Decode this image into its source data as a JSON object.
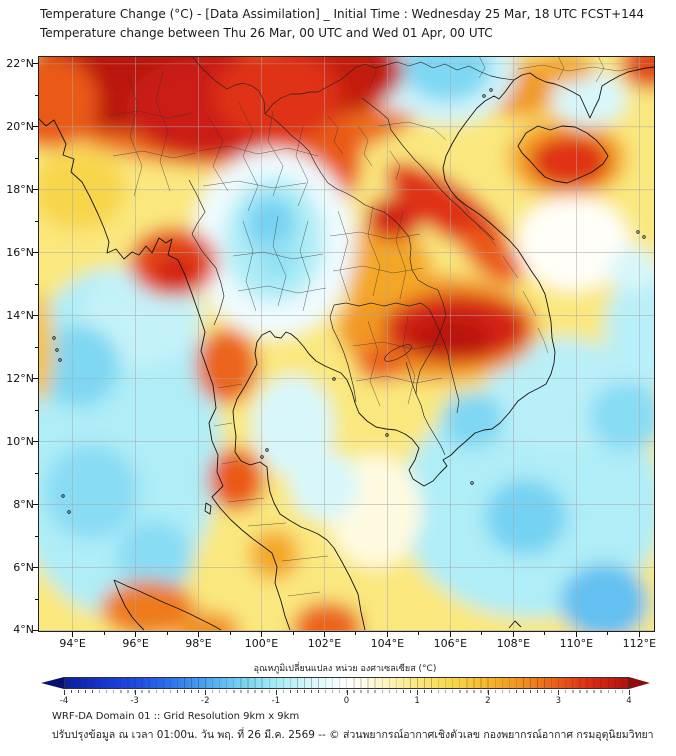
{
  "header": {
    "title_line1": "Temperature Change (°C) - [Data Assimilation] _ Initial Time : Wednesday 25 Mar, 18 UTC FCST+144",
    "title_line2": "Temperature change between Thu 26 Mar, 00 UTC and Wed 01 Apr, 00 UTC"
  },
  "map": {
    "extent": {
      "lon_min": 92.9,
      "lon_max": 112.5,
      "lat_min": 3.95,
      "lat_max": 22.25
    },
    "x_axis": {
      "tick_values": [
        94,
        96,
        98,
        100,
        102,
        104,
        106,
        108,
        110,
        112
      ],
      "tick_labels": [
        "94°E",
        "96°E",
        "98°E",
        "100°E",
        "102°E",
        "104°E",
        "106°E",
        "108°E",
        "110°E",
        "112°E"
      ]
    },
    "y_axis": {
      "tick_values": [
        22,
        20,
        18,
        16,
        14,
        12,
        10,
        8,
        6,
        4
      ],
      "tick_labels": [
        "22°N",
        "20°N",
        "18°N",
        "16°N",
        "14°N",
        "12°N",
        "10°N",
        "8°N",
        "6°N",
        "4°N"
      ]
    }
  },
  "colorbar": {
    "title": "อุณหภูมิเปลี่ยนแปลง หน่วย องศาเซลเซียส (°C)",
    "tick_labels": [
      "-4",
      "-3",
      "-2",
      "-1",
      "0",
      "1",
      "2",
      "3",
      "4"
    ],
    "tick_values": [
      -4,
      -3,
      -2,
      -1,
      0,
      1,
      2,
      3,
      4
    ],
    "under_color": "#071070",
    "over_color": "#8E0A0C",
    "stops": [
      [
        -4,
        "#0B1FA0"
      ],
      [
        -3.5,
        "#1534CC"
      ],
      [
        -3,
        "#1D4BE4"
      ],
      [
        -2.5,
        "#2E72EC"
      ],
      [
        -2,
        "#4AA5F0"
      ],
      [
        -1.5,
        "#74D2F2"
      ],
      [
        -1,
        "#A5EAF6"
      ],
      [
        -0.5,
        "#D8F7FB"
      ],
      [
        -0.15,
        "#F3FCFE"
      ],
      [
        0,
        "#FFFFFF"
      ],
      [
        0.15,
        "#FFFEF4"
      ],
      [
        0.5,
        "#FDF5C6"
      ],
      [
        1,
        "#FAE87E"
      ],
      [
        1.5,
        "#F8D64B"
      ],
      [
        2,
        "#F6B72E"
      ],
      [
        2.5,
        "#F1901F"
      ],
      [
        3,
        "#EA5A19"
      ],
      [
        3.5,
        "#DC2814"
      ],
      [
        4,
        "#B2120F"
      ]
    ]
  },
  "footer": {
    "line1": "WRF-DA Domain 01 :: Grid Resolution 9km x 9km",
    "line2": "ปรับปรุงข้อมูล ณ เวลา 01:00น. วัน พฤ. ที่ 26 มี.ค. 2569 -- © ส่วนพยากรณ์อากาศเชิงตัวเลข กองพยากรณ์อากาศ กรมอุตุนิยมวิทยา"
  },
  "chart_data": {
    "type": "heatmap",
    "subtype": "filled-contour temperature-change map",
    "title": "Temperature Change (°C) - [Data Assimilation]",
    "region": "Thailand / Indochina (WRF-DA Domain 01)",
    "xlabel": "Longitude (°E)",
    "ylabel": "Latitude (°N)",
    "xlim": [
      92.9,
      112.5
    ],
    "ylim": [
      3.95,
      22.25
    ],
    "grid": true,
    "value_units": "°C",
    "value_range": [
      -4,
      4
    ],
    "base_value": 1.0,
    "anomaly_centers": [
      {
        "name": "andaman-sea-cool",
        "lon": 95.3,
        "lat": 10.0,
        "rx": 3.4,
        "ry": 5.5,
        "dT": -0.9
      },
      {
        "name": "andaman-north-cool",
        "lon": 96.2,
        "lat": 14.0,
        "rx": 1.9,
        "ry": 1.6,
        "dT": -0.7
      },
      {
        "name": "south-china-sea-cool",
        "lon": 108.6,
        "lat": 8.0,
        "rx": 4.2,
        "ry": 3.6,
        "dT": -0.9
      },
      {
        "name": "scs-north-cool",
        "lon": 109.5,
        "lat": 11.5,
        "rx": 2.4,
        "ry": 1.8,
        "dT": -0.8
      },
      {
        "name": "scs-east-cool",
        "lon": 112.2,
        "lat": 13.5,
        "rx": 1.3,
        "ry": 2.0,
        "dT": -0.8
      },
      {
        "name": "north-warm-band",
        "lon": 99.0,
        "lat": 21.3,
        "rx": 6.5,
        "ry": 2.6,
        "dT": 2.8
      },
      {
        "name": "laos-north-warm",
        "lon": 101.7,
        "lat": 19.0,
        "rx": 1.5,
        "ry": 1.8,
        "dT": 3.0
      },
      {
        "name": "myanmar-coast-mild",
        "lon": 94.2,
        "lat": 18.0,
        "rx": 1.5,
        "ry": 1.3,
        "dT": 1.5
      },
      {
        "name": "south-indochina-warm-halo",
        "lon": 105.6,
        "lat": 13.6,
        "rx": 3.2,
        "ry": 1.7,
        "dT": 2.4
      },
      {
        "name": "ne-thailand-warm",
        "lon": 103.8,
        "lat": 15.6,
        "rx": 1.6,
        "ry": 1.2,
        "dT": 2.2
      },
      {
        "name": "tonkin-coast-warm",
        "lon": 108.2,
        "lat": 21.2,
        "rx": 1.2,
        "ry": 0.9,
        "dT": 2.4
      },
      {
        "name": "hainan-warm-halo",
        "lon": 109.7,
        "lat": 19.0,
        "rx": 1.9,
        "ry": 1.3,
        "dT": 2.2
      },
      {
        "name": "gulf-gap-neutral",
        "lon": 103.6,
        "lat": 7.8,
        "rx": 1.5,
        "ry": 1.8,
        "dT": 0.3
      },
      {
        "name": "vietnam-east-neutral",
        "lon": 109.9,
        "lat": 16.3,
        "rx": 1.8,
        "ry": 1.5,
        "dT": 0.1
      },
      {
        "name": "central-thailand-neutral",
        "lon": 100.4,
        "lat": 16.3,
        "rx": 2.6,
        "ry": 3.0,
        "dT": -0.2
      },
      {
        "name": "viet-border-spot",
        "lon": 104.2,
        "lat": 21.0,
        "rx": 0.6,
        "ry": 0.5,
        "dT": -0.3
      },
      {
        "name": "leizhou-cool",
        "lon": 110.4,
        "lat": 20.9,
        "rx": 1.2,
        "ry": 0.9,
        "dT": -0.5
      },
      {
        "name": "paracel-cool",
        "lon": 111.8,
        "lat": 15.5,
        "rx": 0.8,
        "ry": 0.7,
        "dT": -0.5
      },
      {
        "name": "gulf-thailand-cool",
        "lon": 101.0,
        "lat": 10.5,
        "rx": 1.3,
        "ry": 1.6,
        "dT": -0.5
      },
      {
        "name": "gulf-thailand-cool2",
        "lon": 102.0,
        "lat": 8.6,
        "rx": 1.1,
        "ry": 1.1,
        "dT": -0.5
      },
      {
        "name": "cao-bang-cool-halo",
        "lon": 105.9,
        "lat": 21.8,
        "rx": 2.2,
        "ry": 1.7,
        "dT": -0.6
      },
      {
        "name": "cao-bang-cool",
        "lon": 105.9,
        "lat": 21.9,
        "rx": 1.4,
        "ry": 1.1,
        "dT": -1.4
      },
      {
        "name": "central-thailand-cool",
        "lon": 100.4,
        "lat": 16.4,
        "rx": 1.6,
        "ry": 2.0,
        "dT": -0.9
      },
      {
        "name": "phitsanulok-cool-core",
        "lon": 100.3,
        "lat": 16.9,
        "rx": 0.8,
        "ry": 0.9,
        "dT": -1.5
      },
      {
        "name": "nakhon-sawan-cool-core",
        "lon": 100.5,
        "lat": 15.8,
        "rx": 0.6,
        "ry": 0.7,
        "dT": -1.2
      },
      {
        "name": "andaman-core1",
        "lon": 94.2,
        "lat": 12.4,
        "rx": 1.3,
        "ry": 1.3,
        "dT": -1.4
      },
      {
        "name": "andaman-core2",
        "lon": 94.6,
        "lat": 8.4,
        "rx": 1.5,
        "ry": 1.5,
        "dT": -1.3
      },
      {
        "name": "andaman-core3",
        "lon": 96.6,
        "lat": 6.3,
        "rx": 1.2,
        "ry": 1.2,
        "dT": -1.3
      },
      {
        "name": "scs-core1",
        "lon": 106.7,
        "lat": 10.7,
        "rx": 1.0,
        "ry": 0.9,
        "dT": -1.4
      },
      {
        "name": "scs-core2",
        "lon": 108.4,
        "lat": 7.6,
        "rx": 1.3,
        "ry": 1.2,
        "dT": -1.5
      },
      {
        "name": "scs-core3",
        "lon": 110.9,
        "lat": 4.9,
        "rx": 1.4,
        "ry": 1.2,
        "dT": -1.7
      },
      {
        "name": "scs-core4",
        "lon": 111.6,
        "lat": 10.8,
        "rx": 1.2,
        "ry": 1.1,
        "dT": -1.3
      },
      {
        "name": "west-edge-warm-strip",
        "lon": 92.9,
        "lat": 13.0,
        "rx": 0.5,
        "ry": 1.8,
        "dT": 1.8
      },
      {
        "name": "myanmar-north-hot",
        "lon": 96.2,
        "lat": 21.6,
        "rx": 3.8,
        "ry": 1.8,
        "dT": 3.9
      },
      {
        "name": "shan-hot",
        "lon": 98.3,
        "lat": 20.6,
        "rx": 2.6,
        "ry": 1.6,
        "dT": 3.7
      },
      {
        "name": "yunnan-hot",
        "lon": 102.3,
        "lat": 21.8,
        "rx": 2.2,
        "ry": 1.4,
        "dT": 3.8
      },
      {
        "name": "golden-triangle-hot",
        "lon": 100.5,
        "lat": 21.0,
        "rx": 2.0,
        "ry": 1.5,
        "dT": 3.4
      },
      {
        "name": "nw-corner-hot",
        "lon": 93.3,
        "lat": 20.8,
        "rx": 1.5,
        "ry": 1.5,
        "dT": 3.0
      },
      {
        "name": "ne-corner-hot",
        "lon": 112.4,
        "lat": 22.0,
        "rx": 1.0,
        "ry": 0.8,
        "dT": 3.2
      },
      {
        "name": "guangxi-warm-spot",
        "lon": 109.6,
        "lat": 21.9,
        "rx": 1.0,
        "ry": 0.5,
        "dT": 2.2
      },
      {
        "name": "hainan-hot",
        "lon": 109.8,
        "lat": 18.9,
        "rx": 1.3,
        "ry": 0.85,
        "dT": 3.4
      },
      {
        "name": "central-laos-hot",
        "lon": 104.2,
        "lat": 17.1,
        "rx": 0.9,
        "ry": 0.7,
        "dT": 3.6
      },
      {
        "name": "annamite-hot-streak",
        "lon": 105.9,
        "lat": 17.4,
        "rx": 2.3,
        "ry": 0.8,
        "dT": 3.4,
        "rot": 35
      },
      {
        "name": "annamite-hot-streak2",
        "lon": 107.3,
        "lat": 15.9,
        "rx": 1.2,
        "ry": 0.6,
        "dT": 3.0,
        "rot": 40
      },
      {
        "name": "irrawaddy-delta-hot",
        "lon": 97.2,
        "lat": 15.7,
        "rx": 1.4,
        "ry": 1.1,
        "dT": 3.2
      },
      {
        "name": "irrawaddy-delta-core",
        "lon": 97.3,
        "lat": 15.4,
        "rx": 0.7,
        "ry": 0.55,
        "dT": 3.6
      },
      {
        "name": "south-vietnam-hot",
        "lon": 106.2,
        "lat": 13.6,
        "rx": 2.3,
        "ry": 1.1,
        "dT": 3.6
      },
      {
        "name": "south-vietnam-hot-core",
        "lon": 106.0,
        "lat": 13.3,
        "rx": 1.3,
        "ry": 0.65,
        "dT": 3.9
      },
      {
        "name": "cambodia-warm-spot",
        "lon": 103.8,
        "lat": 12.5,
        "rx": 0.8,
        "ry": 0.6,
        "dT": 2.9
      },
      {
        "name": "peninsula-warm1",
        "lon": 98.9,
        "lat": 12.4,
        "rx": 1.0,
        "ry": 1.2,
        "dT": 2.9
      },
      {
        "name": "peninsula-warm2",
        "lon": 99.2,
        "lat": 8.8,
        "rx": 0.9,
        "ry": 1.0,
        "dT": 3.0
      },
      {
        "name": "songkhla-warm",
        "lon": 100.4,
        "lat": 6.4,
        "rx": 0.8,
        "ry": 0.8,
        "dT": 2.2
      },
      {
        "name": "sumatra-warm",
        "lon": 96.4,
        "lat": 4.7,
        "rx": 1.5,
        "ry": 0.9,
        "dT": 2.7
      },
      {
        "name": "sumatra-warm2",
        "lon": 98.3,
        "lat": 4.0,
        "rx": 1.0,
        "ry": 0.6,
        "dT": 2.5
      },
      {
        "name": "malaysia-east-warm",
        "lon": 102.1,
        "lat": 4.1,
        "rx": 1.1,
        "ry": 0.8,
        "dT": 2.9
      }
    ]
  }
}
